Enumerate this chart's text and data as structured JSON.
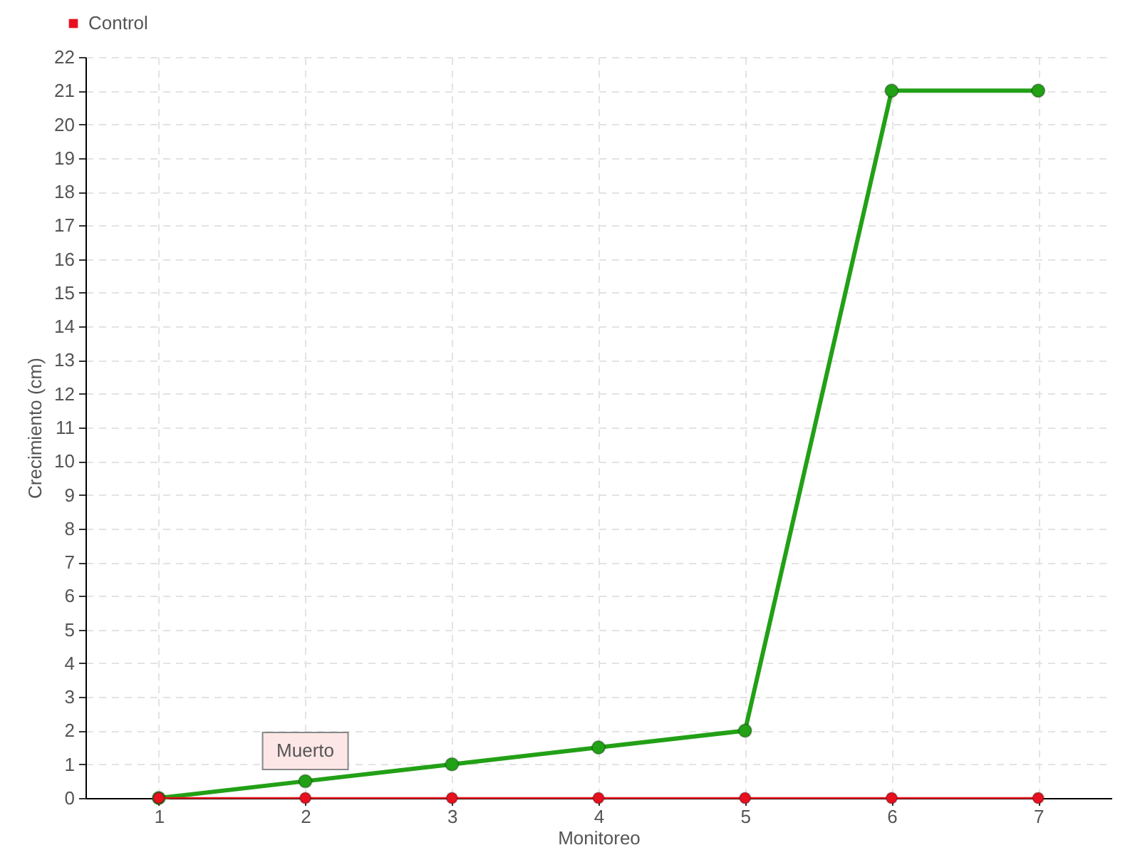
{
  "chart_data": {
    "type": "line",
    "xlabel": "Monitoreo",
    "ylabel": "Crecimiento (cm)",
    "categories": [
      "1",
      "2",
      "3",
      "4",
      "5",
      "6",
      "7"
    ],
    "series": [
      {
        "color": "#22a016",
        "values": [
          0,
          0.5,
          1,
          1.5,
          2,
          21,
          21
        ]
      },
      {
        "name": "Control",
        "color": "#e8101e",
        "values": [
          0,
          0,
          0,
          0,
          0,
          0,
          0
        ]
      }
    ],
    "ylim": [
      0,
      22
    ],
    "yticks": [
      0,
      1,
      2,
      3,
      4,
      5,
      6,
      7,
      8,
      9,
      10,
      11,
      12,
      13,
      14,
      15,
      16,
      17,
      18,
      19,
      20,
      21,
      22
    ],
    "grid": true,
    "legend": "top left",
    "marker": "circle",
    "line_style": "solid",
    "annotations": [
      {
        "text": "Muerto",
        "x": "2",
        "y": 0
      }
    ]
  }
}
